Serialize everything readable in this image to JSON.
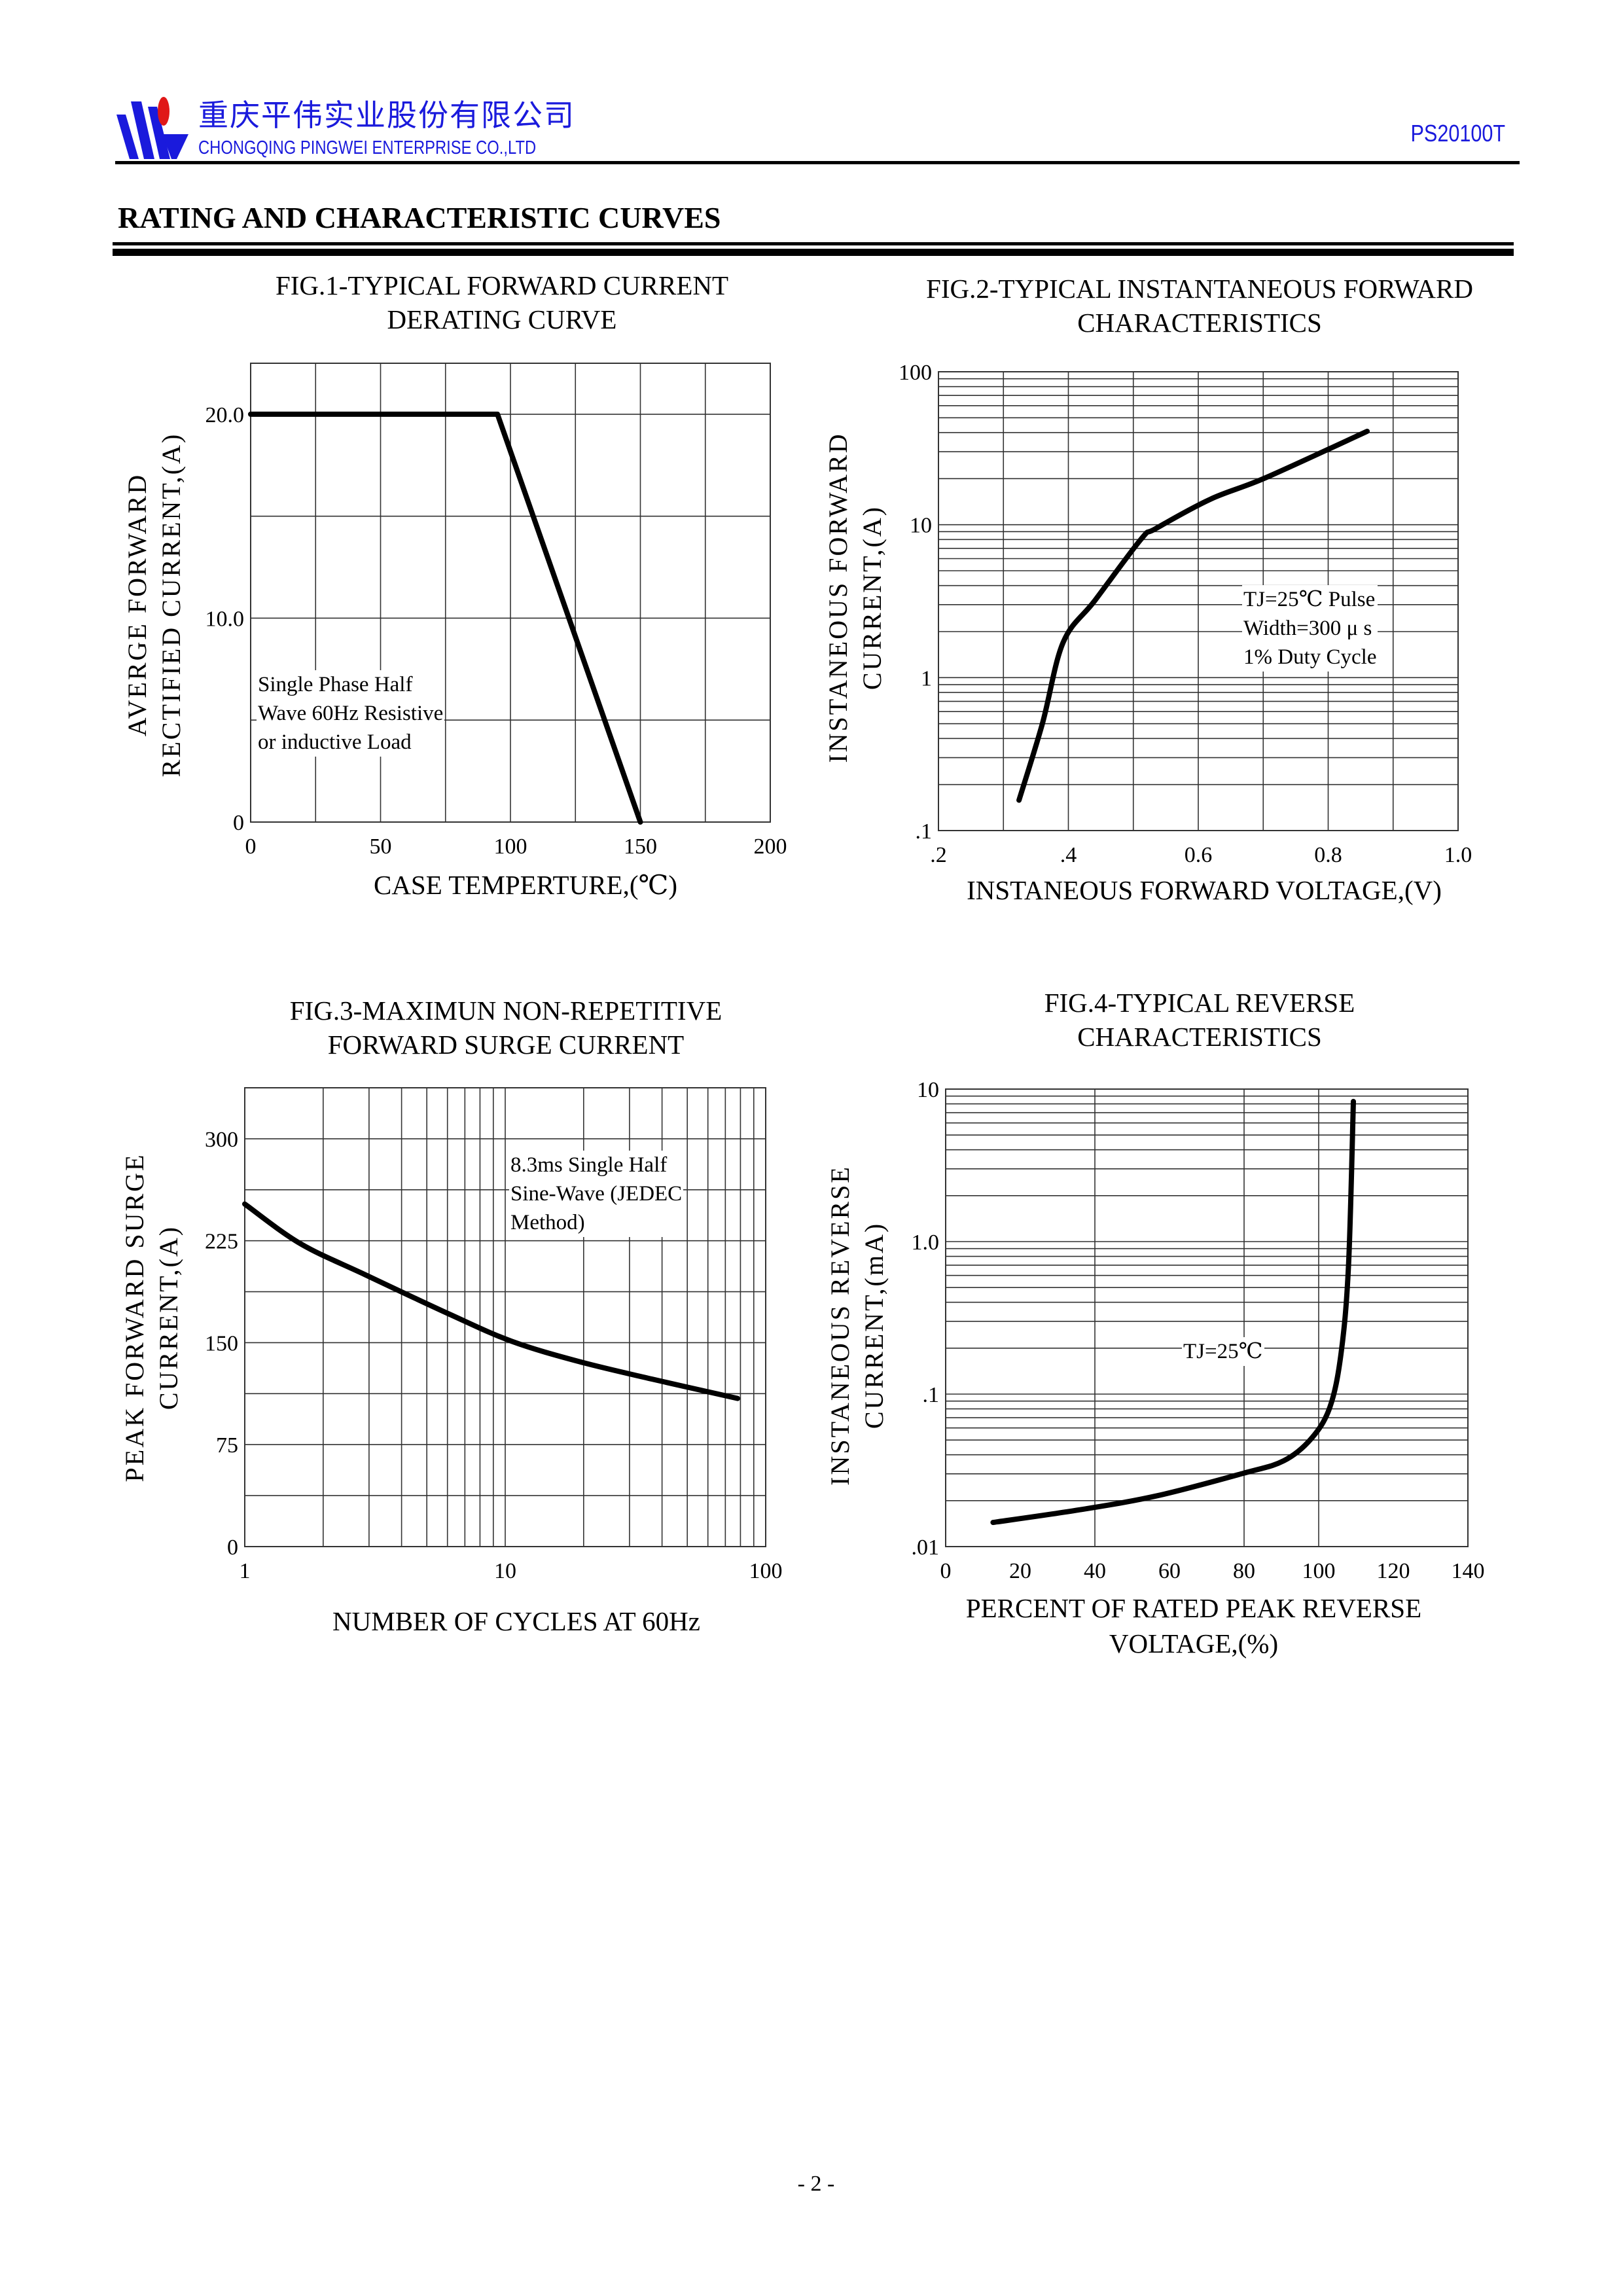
{
  "header": {
    "company_cn": "重庆平伟实业股份有限公司",
    "company_en": "CHONGQING PINGWEI ENTERPRISE CO.,LTD",
    "part_number": "PS20100T",
    "brand_color": "#1a1adc",
    "logo_accent_color": "#e01818"
  },
  "section_title": "RATING AND CHARACTERISTIC CURVES",
  "footer": {
    "page": "- 2 -"
  },
  "chart_data": [
    {
      "type": "line",
      "title": [
        "FIG.1-TYPICAL FORWARD CURRENT",
        "DERATING CURVE"
      ],
      "xlabel": "CASE TEMPERTURE,(℃)",
      "ylabel": [
        "AVERGE FORWARD",
        "RECTIFIED CURRENT,(A)"
      ],
      "xscale": "linear",
      "yscale": "linear",
      "xlim": [
        0,
        200
      ],
      "ylim": [
        0,
        22.5
      ],
      "x_ticks": [
        {
          "v": 0,
          "label": "0"
        },
        {
          "v": 50,
          "label": "50"
        },
        {
          "v": 100,
          "label": "100"
        },
        {
          "v": 150,
          "label": "150"
        },
        {
          "v": 200,
          "label": "200"
        }
      ],
      "y_ticks": [
        {
          "v": 0,
          "label": "0"
        },
        {
          "v": 10,
          "label": "10.0"
        },
        {
          "v": 20,
          "label": "20.0"
        }
      ],
      "x_grid": [
        0,
        25,
        50,
        75,
        100,
        125,
        150,
        175,
        200
      ],
      "y_grid": [
        0,
        5,
        10,
        15,
        20,
        22.5
      ],
      "grid": true,
      "annotation": [
        "Single Phase Half",
        "Wave 60Hz Resistive",
        "or inductive Load"
      ],
      "series": [
        {
          "name": "derating",
          "x": [
            0,
            95,
            150
          ],
          "y": [
            20,
            20,
            0
          ]
        }
      ]
    },
    {
      "type": "line",
      "title": [
        "FIG.2-TYPICAL INSTANTANEOUS FORWARD",
        "CHARACTERISTICS"
      ],
      "xlabel": "INSTANEOUS FORWARD VOLTAGE,(V)",
      "ylabel": [
        "INSTANEOUS FORWARD",
        "CURRENT,(A)"
      ],
      "xscale": "linear",
      "yscale": "log",
      "xlim": [
        0.2,
        1.0
      ],
      "ylim": [
        0.1,
        100
      ],
      "x_ticks": [
        {
          "v": 0.2,
          "label": ".2"
        },
        {
          "v": 0.4,
          "label": ".4"
        },
        {
          "v": 0.6,
          "label": "0.6"
        },
        {
          "v": 0.8,
          "label": "0.8"
        },
        {
          "v": 1.0,
          "label": "1.0"
        }
      ],
      "y_ticks": [
        {
          "v": 0.1,
          "label": ".1"
        },
        {
          "v": 1,
          "label": "1"
        },
        {
          "v": 10,
          "label": "10"
        },
        {
          "v": 100,
          "label": "100"
        }
      ],
      "x_grid": [
        0.2,
        0.3,
        0.4,
        0.5,
        0.6,
        0.7,
        0.8,
        0.9,
        1.0
      ],
      "grid": true,
      "annotation": [
        "TJ=25℃ Pulse",
        "Width=300 μ s",
        "1% Duty Cycle"
      ],
      "series": [
        {
          "name": "forward",
          "x": [
            0.324,
            0.36,
            0.392,
            0.441,
            0.512,
            0.534,
            0.619,
            0.704,
            0.86
          ],
          "y": [
            0.158,
            0.5,
            1.7,
            3.2,
            8.05,
            9.4,
            14.7,
            20.3,
            40.8
          ]
        }
      ]
    },
    {
      "type": "line",
      "title": [
        "FIG.3-MAXIMUN NON-REPETITIVE",
        "FORWARD SURGE CURRENT"
      ],
      "xlabel": "NUMBER OF CYCLES AT 60Hz",
      "ylabel": [
        "PEAK FORWARD SURGE",
        "CURRENT,(A)"
      ],
      "xscale": "log",
      "yscale": "linear",
      "xlim": [
        1,
        100
      ],
      "ylim": [
        0,
        337.5
      ],
      "x_ticks": [
        {
          "v": 1,
          "label": "1"
        },
        {
          "v": 10,
          "label": "10"
        },
        {
          "v": 100,
          "label": "100"
        }
      ],
      "y_ticks": [
        {
          "v": 0,
          "label": "0"
        },
        {
          "v": 75,
          "label": "75"
        },
        {
          "v": 150,
          "label": "150"
        },
        {
          "v": 225,
          "label": "225"
        },
        {
          "v": 300,
          "label": "300"
        }
      ],
      "y_grid": [
        0,
        37.5,
        75,
        112.5,
        150,
        187.5,
        225,
        262.5,
        300,
        337.5
      ],
      "grid": true,
      "annotation": [
        "8.3ms Single Half",
        "Sine-Wave (JEDEC",
        "Method)"
      ],
      "series": [
        {
          "name": "surge",
          "x": [
            1,
            1.63,
            2.9,
            6.1,
            10.6,
            19.3,
            37,
            78
          ],
          "y": [
            252,
            223,
            200,
            171,
            151,
            136,
            123,
            109
          ]
        }
      ]
    },
    {
      "type": "line",
      "title": [
        "FIG.4-TYPICAL REVERSE",
        "CHARACTERISTICS"
      ],
      "xlabel": [
        "PERCENT OF RATED PEAK REVERSE",
        "VOLTAGE,(%)"
      ],
      "ylabel": [
        "INSTANEOUS REVERSE",
        "CURRENT,(mA)"
      ],
      "xscale": "linear",
      "yscale": "log",
      "xlim": [
        0,
        140
      ],
      "ylim": [
        0.01,
        10
      ],
      "x_ticks": [
        {
          "v": 0,
          "label": "0"
        },
        {
          "v": 20,
          "label": "20"
        },
        {
          "v": 40,
          "label": "40"
        },
        {
          "v": 60,
          "label": "60"
        },
        {
          "v": 80,
          "label": "80"
        },
        {
          "v": 100,
          "label": "100"
        },
        {
          "v": 120,
          "label": "120"
        },
        {
          "v": 140,
          "label": "140"
        }
      ],
      "y_ticks": [
        {
          "v": 0.01,
          "label": ".01"
        },
        {
          "v": 0.1,
          "label": ".1"
        },
        {
          "v": 1,
          "label": "1.0"
        },
        {
          "v": 10,
          "label": "10"
        }
      ],
      "x_grid": [
        0,
        40,
        80,
        100,
        140
      ],
      "grid": true,
      "annotation": [
        "TJ=25℃"
      ],
      "series": [
        {
          "name": "reverse",
          "x": [
            12.7,
            35.7,
            56.9,
            79.9,
            90.6,
            98,
            103,
            106,
            108,
            109.3
          ],
          "y": [
            0.0144,
            0.0174,
            0.0216,
            0.0303,
            0.0365,
            0.051,
            0.082,
            0.185,
            0.7,
            8.3
          ]
        }
      ]
    }
  ]
}
